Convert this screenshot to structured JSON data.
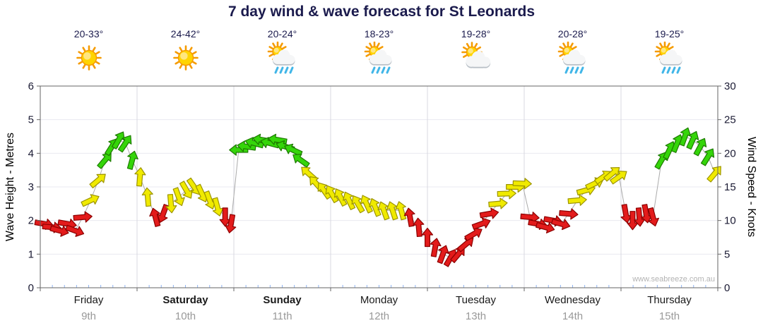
{
  "title": "7 day wind & wave forecast for St Leonards",
  "watermark": "www.seabreeze.com.au",
  "days": [
    {
      "name": "Friday",
      "date": "9th",
      "temp": "20-33°",
      "icon": "sunny",
      "weekend": false
    },
    {
      "name": "Saturday",
      "date": "10th",
      "temp": "24-42°",
      "icon": "sunny",
      "weekend": true
    },
    {
      "name": "Sunday",
      "date": "11th",
      "temp": "20-24°",
      "icon": "sun-showers",
      "weekend": true
    },
    {
      "name": "Monday",
      "date": "12th",
      "temp": "18-23°",
      "icon": "sun-showers",
      "weekend": false
    },
    {
      "name": "Tuesday",
      "date": "13th",
      "temp": "19-28°",
      "icon": "partly-cloudy",
      "weekend": false
    },
    {
      "name": "Wednesday",
      "date": "14th",
      "temp": "20-28°",
      "icon": "sun-showers",
      "weekend": false
    },
    {
      "name": "Thursday",
      "date": "15th",
      "temp": "19-25°",
      "icon": "sun-showers",
      "weekend": false
    }
  ],
  "chart_data": {
    "type": "wind-arrow-timeseries",
    "title": "7 day wind & wave forecast for St Leonards",
    "categories": [
      "Friday",
      "Saturday",
      "Sunday",
      "Monday",
      "Tuesday",
      "Wednesday",
      "Thursday"
    ],
    "left_axis": {
      "label": "Wave Height - Metres",
      "min": 0,
      "max": 6,
      "ticks": [
        0,
        1,
        2,
        3,
        4,
        5,
        6
      ]
    },
    "right_axis": {
      "label": "Wind Speed - Knots",
      "min": 0,
      "max": 30,
      "ticks": [
        0,
        5,
        10,
        15,
        20,
        25,
        30
      ]
    },
    "grid": "day-boundaries and metre lines, minimal",
    "legend": "none (arrow colour encodes wind speed)",
    "speed_colors": {
      "red": "#e31b1b",
      "red_dark": "#8b0000",
      "yellow": "#f0ea00",
      "yellow_dark": "#9c9400",
      "green": "#35d50a",
      "green_dark": "#1d7a00",
      "thresholds": {
        "red_below": 11.5,
        "yellow_below": 18.5
      }
    },
    "point_format": [
      "day_offset_0_to_7",
      "wind_speed_knots",
      "arrow_direction_deg"
    ],
    "points": [
      [
        0.04,
        9.5,
        100
      ],
      [
        0.12,
        9,
        95
      ],
      [
        0.2,
        8.5,
        105
      ],
      [
        0.28,
        9.5,
        100
      ],
      [
        0.36,
        8.5,
        110
      ],
      [
        0.44,
        10.5,
        85
      ],
      [
        0.52,
        13,
        65
      ],
      [
        0.6,
        16,
        50
      ],
      [
        0.67,
        19,
        40
      ],
      [
        0.74,
        21,
        32
      ],
      [
        0.81,
        22,
        30
      ],
      [
        0.88,
        21.5,
        34
      ],
      [
        0.95,
        19,
        15
      ],
      [
        1.03,
        16.5,
        5
      ],
      [
        1.11,
        13.5,
        355
      ],
      [
        1.19,
        10.5,
        345
      ],
      [
        1.27,
        11,
        200
      ],
      [
        1.35,
        12.5,
        175
      ],
      [
        1.43,
        13.5,
        160
      ],
      [
        1.51,
        14.5,
        150
      ],
      [
        1.59,
        15,
        145
      ],
      [
        1.67,
        14,
        155
      ],
      [
        1.75,
        13,
        160
      ],
      [
        1.83,
        12,
        165
      ],
      [
        1.91,
        10.5,
        180
      ],
      [
        1.97,
        9.5,
        190
      ],
      [
        2.05,
        20.5,
        270
      ],
      [
        2.13,
        21,
        278
      ],
      [
        2.21,
        21.5,
        285
      ],
      [
        2.29,
        22,
        280
      ],
      [
        2.37,
        21.5,
        285
      ],
      [
        2.45,
        22,
        280
      ],
      [
        2.53,
        21,
        288
      ],
      [
        2.61,
        20.5,
        295
      ],
      [
        2.69,
        19,
        305
      ],
      [
        2.77,
        17,
        312
      ],
      [
        2.85,
        15.5,
        318
      ],
      [
        2.93,
        14.5,
        325
      ],
      [
        3.01,
        14,
        330
      ],
      [
        3.1,
        13.5,
        332
      ],
      [
        3.19,
        13,
        335
      ],
      [
        3.28,
        12.5,
        330
      ],
      [
        3.37,
        12.5,
        335
      ],
      [
        3.46,
        12,
        338
      ],
      [
        3.55,
        11.5,
        340
      ],
      [
        3.64,
        11.5,
        342
      ],
      [
        3.73,
        11.5,
        345
      ],
      [
        3.82,
        10.5,
        350
      ],
      [
        3.91,
        9,
        355
      ],
      [
        4.0,
        7.5,
        0
      ],
      [
        4.08,
        6,
        10
      ],
      [
        4.16,
        5,
        20
      ],
      [
        4.24,
        4.5,
        30
      ],
      [
        4.32,
        5,
        40
      ],
      [
        4.4,
        6.5,
        50
      ],
      [
        4.48,
        8,
        60
      ],
      [
        4.56,
        9.5,
        70
      ],
      [
        4.64,
        11,
        80
      ],
      [
        4.73,
        12.5,
        85
      ],
      [
        4.82,
        14,
        88
      ],
      [
        4.91,
        15,
        90
      ],
      [
        4.98,
        15.5,
        92
      ],
      [
        5.06,
        10.5,
        95
      ],
      [
        5.14,
        9.5,
        100
      ],
      [
        5.22,
        9,
        105
      ],
      [
        5.3,
        10,
        100
      ],
      [
        5.38,
        9.5,
        105
      ],
      [
        5.46,
        11,
        95
      ],
      [
        5.55,
        13,
        85
      ],
      [
        5.64,
        14.5,
        75
      ],
      [
        5.73,
        15.5,
        65
      ],
      [
        5.82,
        16.5,
        55
      ],
      [
        5.91,
        17,
        50
      ],
      [
        5.98,
        16.5,
        55
      ],
      [
        6.05,
        11,
        170
      ],
      [
        6.12,
        10,
        180
      ],
      [
        6.19,
        10.5,
        175
      ],
      [
        6.26,
        11,
        170
      ],
      [
        6.33,
        10.5,
        165
      ],
      [
        6.42,
        19,
        30
      ],
      [
        6.5,
        20.5,
        25
      ],
      [
        6.58,
        21.5,
        22
      ],
      [
        6.66,
        22.5,
        20
      ],
      [
        6.74,
        22,
        24
      ],
      [
        6.82,
        21,
        28
      ],
      [
        6.9,
        19.5,
        32
      ],
      [
        6.97,
        17,
        40
      ]
    ]
  },
  "palette": {
    "title_text": "#1b1b4d",
    "temp_text": "#1b1b4d",
    "day_name_text": "#1a1a1a",
    "day_date_text": "#999999",
    "axis_tick_text": "#1a1a33",
    "frame": "#666666",
    "grid_horizontal": "#e9e9f0",
    "grid_day_boundary": "#d8d8e0",
    "minor_tick_blue": "#8fb4f2",
    "connector": "#aaaaaa",
    "watermark_text": "#b3b3b3"
  }
}
